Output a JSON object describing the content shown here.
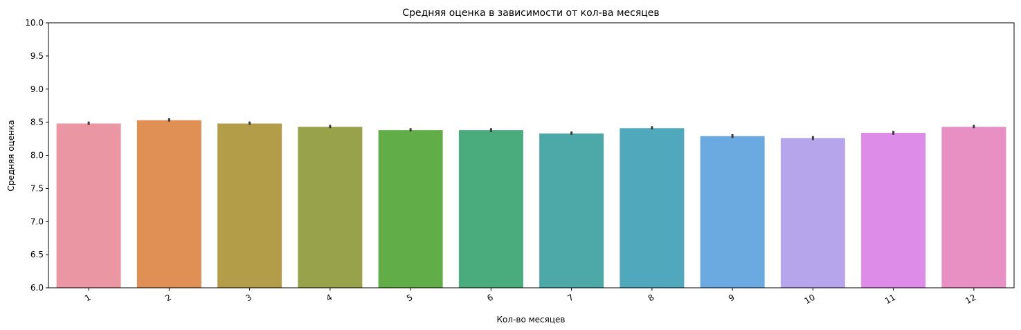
{
  "chart_data": {
    "type": "bar",
    "title": "Средняя оценка в зависимости от кол-ва месяцев",
    "xlabel": "Кол-во месяцев",
    "ylabel": "Средняя оценка",
    "categories": [
      "1",
      "2",
      "3",
      "4",
      "5",
      "6",
      "7",
      "8",
      "9",
      "10",
      "11",
      "12"
    ],
    "values": [
      8.48,
      8.53,
      8.48,
      8.43,
      8.38,
      8.38,
      8.33,
      8.41,
      8.29,
      8.26,
      8.34,
      8.43
    ],
    "error_bars": [
      [
        8.46,
        8.51
      ],
      [
        8.51,
        8.56
      ],
      [
        8.46,
        8.51
      ],
      [
        8.41,
        8.46
      ],
      [
        8.36,
        8.41
      ],
      [
        8.35,
        8.41
      ],
      [
        8.31,
        8.36
      ],
      [
        8.39,
        8.44
      ],
      [
        8.26,
        8.32
      ],
      [
        8.23,
        8.29
      ],
      [
        8.31,
        8.37
      ],
      [
        8.41,
        8.46
      ]
    ],
    "colors": [
      "#ea96a3",
      "#e08f55",
      "#b49d48",
      "#98a24a",
      "#61ad47",
      "#4aab7d",
      "#4ca9a8",
      "#4fa8bb",
      "#6aaae1",
      "#b6a5ea",
      "#dd8ce8",
      "#e88fc4"
    ],
    "ylim": [
      6.0,
      10.0
    ],
    "yticks": [
      "6.0",
      "6.5",
      "7.0",
      "7.5",
      "8.0",
      "8.5",
      "9.0",
      "9.5",
      "10.0"
    ],
    "x_tick_rotation": 30,
    "grid": false,
    "legend": "none"
  }
}
